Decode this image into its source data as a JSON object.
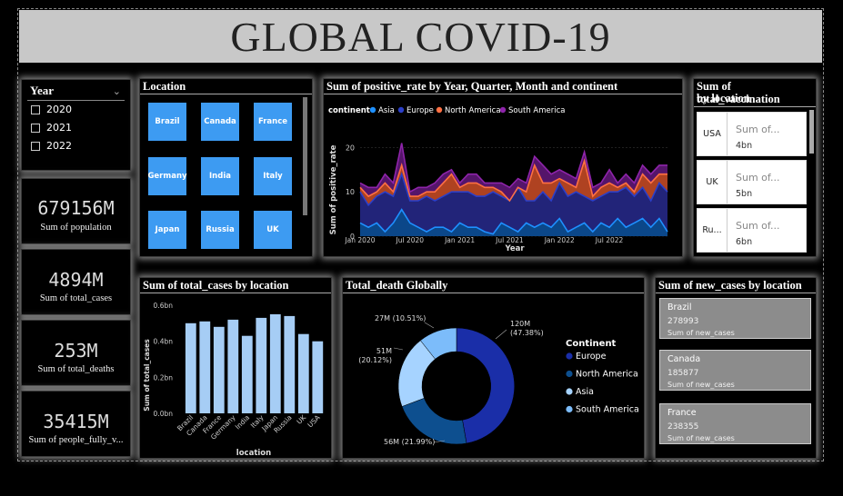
{
  "title": "GLOBAL COVID-19",
  "year_slicer": {
    "title": "Year",
    "items": [
      "2020",
      "2021",
      "2022"
    ]
  },
  "cards": [
    {
      "value": "679156M",
      "label": "Sum of population"
    },
    {
      "value": "4894M",
      "label": "Sum of total_cases"
    },
    {
      "value": "253M",
      "label": "Sum of total_deaths"
    },
    {
      "value": "35415M",
      "label": "Sum of people_fully_v..."
    }
  ],
  "location_slicer": {
    "title": "Location",
    "tiles": [
      "Brazil",
      "Canada",
      "France",
      "Germany",
      "India",
      "Italy",
      "Japan",
      "Russia",
      "UK"
    ]
  },
  "vaccination": {
    "title_line1": "Sum of total_vaccination",
    "title_line2": "by location",
    "rows": [
      {
        "loc": "USA",
        "label": "Sum of...",
        "value": "4bn"
      },
      {
        "loc": "UK",
        "label": "Sum of...",
        "value": "5bn"
      },
      {
        "loc": "Ru...",
        "label": "Sum of...",
        "value": "6bn"
      }
    ]
  },
  "new_cases": {
    "title": "Sum of new_cases by location",
    "rows": [
      {
        "loc": "Brazil",
        "value": "278993",
        "label": "Sum of new_cases"
      },
      {
        "loc": "Canada",
        "value": "185877",
        "label": "Sum of new_cases"
      },
      {
        "loc": "France",
        "value": "238355",
        "label": "Sum of new_cases"
      }
    ]
  },
  "colors": {
    "asia": "#1e90ff",
    "europe": "#2b3fc9",
    "north_america": "#ff7043",
    "south_america": "#8e24aa",
    "bar": "#a6cdf5",
    "donut_europe": "#1a2ea8",
    "donut_north_america": "#0d4f8f",
    "donut_asia": "#a6d3ff",
    "donut_south_america": "#7cbcfa"
  },
  "chart_data": [
    {
      "type": "area",
      "title": "Sum of positive_rate by Year, Quarter, Month and continent",
      "legend_title": "continent",
      "xlabel": "Year",
      "ylabel": "Sum of positive_rate",
      "ylim": [
        0,
        25
      ],
      "y_ticks": [
        0,
        10,
        20
      ],
      "x_tick_labels": [
        "Jan 2020",
        "Jul 2020",
        "Jan 2021",
        "Jul 2021",
        "Jan 2022",
        "Jul 2022"
      ],
      "stacked": true,
      "series": [
        {
          "name": "Asia",
          "values": [
            3,
            2,
            3,
            1,
            3,
            6,
            3,
            2,
            1,
            2,
            2,
            1,
            3,
            2,
            2,
            1,
            0.5,
            3,
            2,
            1,
            3,
            2,
            3,
            2,
            4,
            1,
            2,
            3,
            1,
            3,
            2,
            4,
            2,
            3,
            4,
            2,
            4,
            1
          ]
        },
        {
          "name": "Europe",
          "values": [
            7,
            5,
            6,
            9,
            6,
            8,
            5,
            6,
            8,
            6,
            7,
            9,
            7,
            8,
            7,
            8,
            9.5,
            6,
            6,
            10,
            5,
            6,
            7,
            6,
            8,
            8,
            8,
            6,
            7,
            6,
            8,
            6,
            9,
            6,
            7,
            6,
            8,
            9
          ]
        },
        {
          "name": "North America",
          "values": [
            1,
            2,
            1,
            2,
            1,
            2,
            1,
            1,
            1,
            2,
            3,
            4,
            1,
            2,
            3,
            2,
            1,
            1,
            0,
            0,
            2,
            8,
            2,
            4,
            1,
            3,
            1,
            8,
            1,
            2,
            2,
            1,
            1,
            1,
            3,
            4,
            2,
            4
          ]
        },
        {
          "name": "South America",
          "values": [
            1,
            2,
            1,
            2,
            2,
            5,
            1,
            2,
            1,
            2,
            2,
            1,
            1,
            2,
            2,
            1,
            1,
            2,
            3,
            2,
            2,
            2,
            4,
            2,
            2,
            2,
            2,
            2,
            2,
            1,
            3,
            1,
            2,
            2,
            2,
            2,
            2,
            2
          ]
        }
      ]
    },
    {
      "type": "bar",
      "title": "Sum of total_cases by location",
      "xlabel": "location",
      "ylabel": "Sum of total_cases",
      "ylim": [
        0,
        0.6
      ],
      "y_tick_labels": [
        "0.0bn",
        "0.2bn",
        "0.4bn",
        "0.6bn"
      ],
      "categories": [
        "Brazil",
        "Canada",
        "France",
        "Germany",
        "India",
        "Italy",
        "Japan",
        "Russia",
        "UK",
        "USA"
      ],
      "values": [
        0.5,
        0.51,
        0.48,
        0.52,
        0.43,
        0.53,
        0.55,
        0.54,
        0.44,
        0.4
      ]
    },
    {
      "type": "pie",
      "title": "Total_death Globally",
      "legend_title": "Continent",
      "categories": [
        "Europe",
        "North America",
        "Asia",
        "South America"
      ],
      "values": [
        120,
        56,
        51,
        27
      ],
      "labels": [
        "120M (47.38%)",
        "56M (21.99%)",
        "51M (20.12%)",
        "27M (10.51%)"
      ]
    }
  ]
}
